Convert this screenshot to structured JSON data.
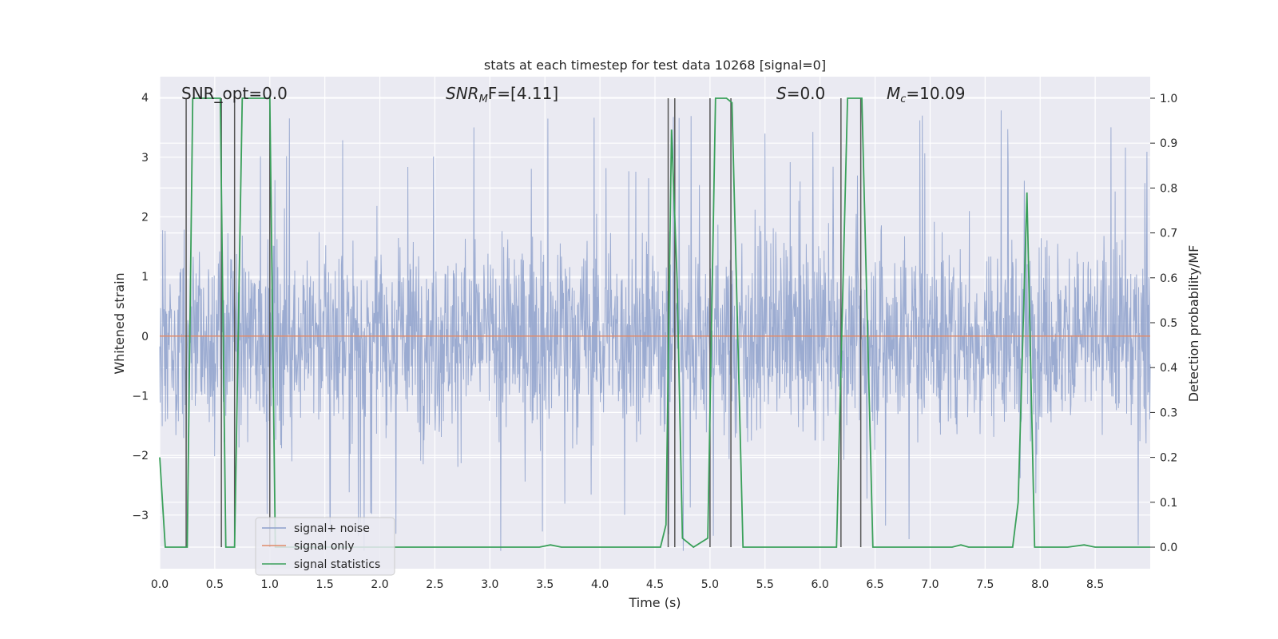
{
  "chart_data": {
    "type": "line",
    "title": "stats at each timestep for test data 10268 [signal=0]",
    "xlabel": "Time (s)",
    "ylabel": "Whitened strain",
    "y2label": "Detection probability/MF",
    "xlim": [
      0.0,
      9.0
    ],
    "ylim": [
      -3.9,
      4.35
    ],
    "y2lim": [
      -0.048,
      1.048
    ],
    "x_ticks": [
      "0.0",
      "0.5",
      "1.0",
      "1.5",
      "2.0",
      "2.5",
      "3.0",
      "3.5",
      "4.0",
      "4.5",
      "5.0",
      "5.5",
      "6.0",
      "6.5",
      "7.0",
      "7.5",
      "8.0",
      "8.5"
    ],
    "y_ticks": [
      "4",
      "3",
      "2",
      "1",
      "0",
      "−1",
      "−2",
      "−3"
    ],
    "y2_ticks": [
      "1.0",
      "0.9",
      "0.8",
      "0.7",
      "0.6",
      "0.5",
      "0.4",
      "0.3",
      "0.2",
      "0.1",
      "0.0"
    ],
    "grid": true,
    "legend_placement": "lower-left",
    "annotations": {
      "snr_opt": "SNR_opt=0.0",
      "snr_mf_main": "SNR",
      "snr_mf_sub": "M",
      "snr_mf_rest": "F=[4.11]",
      "s_main": "S",
      "s_rest": "=0.0",
      "mc_main": "M",
      "mc_sub": "c",
      "mc_rest": "=10.09"
    },
    "colors": {
      "noise": "#8da0cb",
      "signal_only": "#e08b6a",
      "statistics": "#3aa05a",
      "vlines": "#555555",
      "background": "#eaeaf2"
    },
    "series": [
      {
        "name": "signal+ noise",
        "description_envelope": {
          "x": [
            0.0,
            9.0
          ],
          "min": -3.6,
          "max": 4.0,
          "typical": 1.4
        }
      },
      {
        "name": "signal only",
        "x": [
          0.0,
          9.0
        ],
        "y": [
          0.0,
          0.0
        ]
      },
      {
        "name": "signal statistics",
        "axis": "right",
        "x": [
          0.0,
          0.05,
          0.25,
          0.3,
          0.55,
          0.6,
          0.68,
          0.75,
          1.0,
          1.05,
          3.45,
          3.55,
          3.65,
          4.55,
          4.6,
          4.65,
          4.7,
          4.75,
          4.85,
          4.98,
          5.05,
          5.15,
          5.2,
          5.3,
          6.15,
          6.2,
          6.25,
          6.3,
          6.38,
          6.48,
          7.2,
          7.28,
          7.35,
          7.75,
          7.8,
          7.88,
          7.95,
          8.0,
          8.25,
          8.4,
          8.5,
          9.0
        ],
        "y": [
          0.2,
          0.0,
          0.0,
          1.0,
          1.0,
          0.0,
          0.0,
          1.0,
          1.0,
          0.0,
          0.0,
          0.005,
          0.0,
          0.0,
          0.05,
          0.93,
          0.6,
          0.02,
          0.0,
          0.02,
          1.0,
          1.0,
          0.99,
          0.0,
          0.0,
          0.5,
          1.0,
          1.0,
          1.0,
          0.0,
          0.0,
          0.005,
          0.0,
          0.0,
          0.1,
          0.79,
          0.0,
          0.0,
          0.0,
          0.005,
          0.0,
          0.0
        ]
      }
    ],
    "vertical_lines_x": [
      0.24,
      0.56,
      0.68,
      1.0,
      4.62,
      4.68,
      5.0,
      5.19,
      6.19,
      6.37
    ],
    "legend": [
      {
        "label": "signal+ noise",
        "color_key": "noise"
      },
      {
        "label": "signal only",
        "color_key": "signal_only"
      },
      {
        "label": "signal statistics",
        "color_key": "statistics"
      }
    ]
  }
}
